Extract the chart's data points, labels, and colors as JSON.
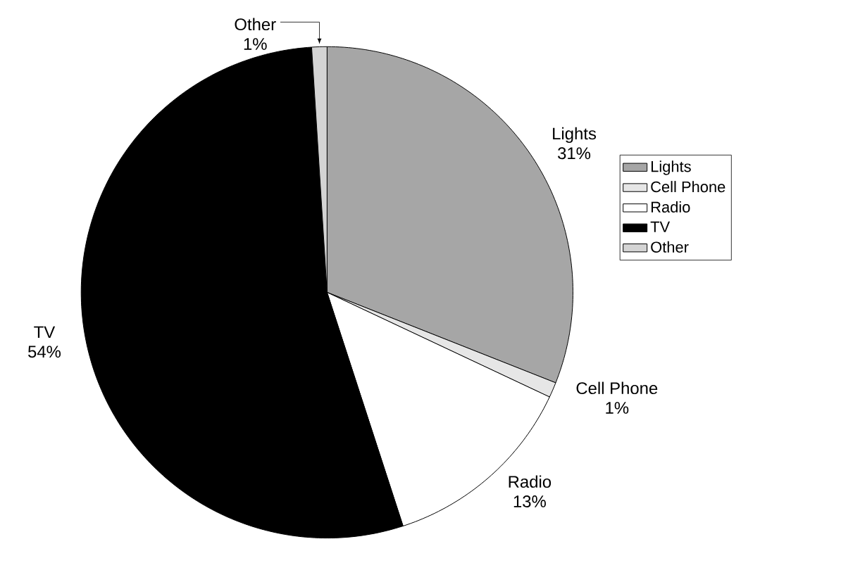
{
  "chart_data": {
    "type": "pie",
    "categories": [
      "Lights",
      "Cell Phone",
      "Radio",
      "TV",
      "Other"
    ],
    "values": [
      31,
      1,
      13,
      54,
      1
    ],
    "colors": [
      "#a6a6a6",
      "#e6e6e6",
      "#ffffff",
      "#000000",
      "#d4d4d4"
    ],
    "value_labels": [
      "31%",
      "1%",
      "13%",
      "54%",
      "1%"
    ],
    "legend": "right"
  }
}
